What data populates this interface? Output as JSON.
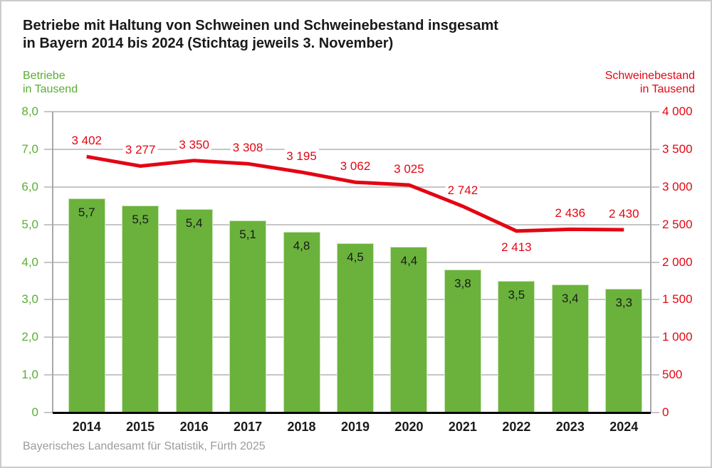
{
  "title": {
    "line1": "Betriebe mit Haltung von Schweinen und Schweinebestand insgesamt",
    "line2": "in Bayern 2014 bis 2024 (Stichtag jeweils 3. November)"
  },
  "left_axis_legend": {
    "line1": "Betriebe",
    "line2": "in Tausend"
  },
  "right_axis_legend": {
    "line1": "Schweinebestand",
    "line2": "in Tausend"
  },
  "footer": "Bayerisches Landesamt für Statistik, Fürth 2025",
  "colors": {
    "bar_green": "#6ab23c",
    "bar_border": "#c9e4b4",
    "green_text": "#5aae32",
    "red": "#e30613",
    "grid_gray": "#c6c6c6",
    "axis_gray": "#a8a8a8",
    "black": "#1a1a1a",
    "footer_gray": "#9b9b9b"
  },
  "chart_data": {
    "type": "bar+line",
    "title": "Betriebe mit Haltung von Schweinen und Schweinebestand insgesamt in Bayern 2014 bis 2024 (Stichtag jeweils 3. November)",
    "categories": [
      "2014",
      "2015",
      "2016",
      "2017",
      "2018",
      "2019",
      "2020",
      "2021",
      "2022",
      "2023",
      "2024"
    ],
    "series": [
      {
        "name": "Betriebe in Tausend",
        "type": "bar",
        "axis": "left",
        "values": [
          5.7,
          5.5,
          5.4,
          5.1,
          4.8,
          4.5,
          4.4,
          3.8,
          3.5,
          3.4,
          3.3
        ],
        "labels": [
          "5,7",
          "5,5",
          "5,4",
          "5,1",
          "4,8",
          "4,5",
          "4,4",
          "3,8",
          "3,5",
          "3,4",
          "3,3"
        ]
      },
      {
        "name": "Schweinebestand in Tausend",
        "type": "line",
        "axis": "right",
        "values": [
          3402,
          3277,
          3350,
          3308,
          3195,
          3062,
          3025,
          2742,
          2413,
          2436,
          2430
        ],
        "labels": [
          "3 402",
          "3 277",
          "3 350",
          "3 308",
          "3 195",
          "3 062",
          "3 025",
          "2 742",
          "2 413",
          "2 436",
          "2 430"
        ],
        "label_below_indices": [
          8
        ]
      }
    ],
    "left_axis": {
      "min": 0,
      "max": 8,
      "step": 1,
      "tick_labels_top_to_bottom": [
        "8,0",
        "7,0",
        "6,0",
        "5,0",
        "4,0",
        "3,0",
        "2,0",
        "1,0",
        "0"
      ]
    },
    "right_axis": {
      "min": 0,
      "max": 4000,
      "step": 500,
      "tick_labels_top_to_bottom": [
        "4 000",
        "3 500",
        "3 000",
        "2 500",
        "2 000",
        "1 500",
        "1 000",
        "500",
        "0"
      ]
    },
    "grid": true,
    "legend_position": "above-axes (left green / right red)"
  }
}
